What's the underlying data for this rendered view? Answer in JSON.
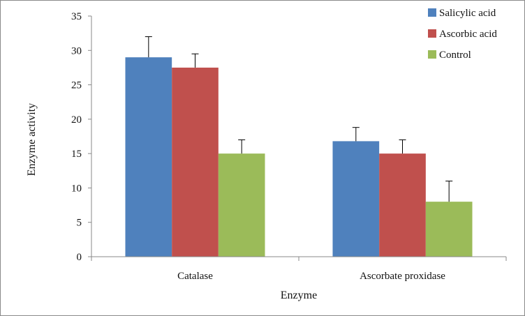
{
  "chart_data": {
    "type": "bar",
    "categories": [
      "Catalase",
      "Ascorbate proxidase"
    ],
    "series": [
      {
        "name": "Salicylic acid",
        "color": "#4F81BD",
        "values": [
          29,
          16.8
        ],
        "errors": [
          3,
          2
        ]
      },
      {
        "name": "Ascorbic acid",
        "color": "#C0504D",
        "values": [
          27.5,
          15
        ],
        "errors": [
          2,
          2
        ]
      },
      {
        "name": "Control",
        "color": "#9BBB59",
        "values": [
          15,
          8
        ],
        "errors": [
          2,
          3
        ]
      }
    ],
    "xlabel": "Enzyme",
    "ylabel": "Enzyme  activity",
    "ylim": [
      0,
      35
    ],
    "yticks": [
      0,
      5,
      10,
      15,
      20,
      25,
      30,
      35
    ],
    "grid": false,
    "legend_position": "top-right"
  }
}
